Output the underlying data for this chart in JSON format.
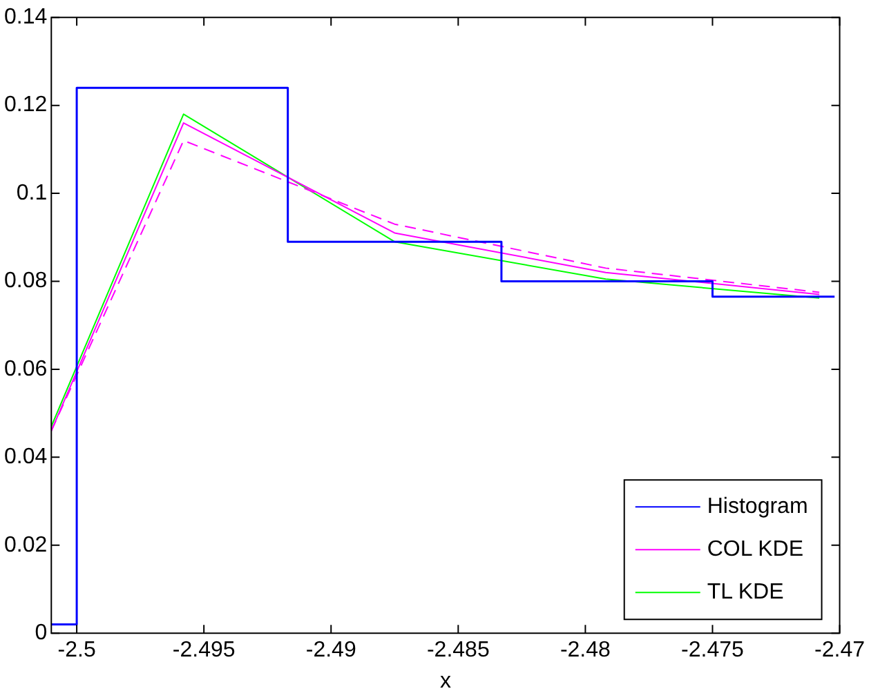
{
  "chart_data": {
    "type": "line",
    "xlabel": "x",
    "xlim": [
      -2.501,
      -2.47
    ],
    "xticks": [
      -2.5,
      -2.495,
      -2.49,
      -2.485,
      -2.48,
      -2.475,
      -2.47
    ],
    "ylim": [
      0,
      0.14
    ],
    "yticks": [
      0,
      0.02,
      0.04,
      0.06,
      0.08,
      0.1,
      0.12,
      0.14
    ],
    "grid": false,
    "legend": "bottom right",
    "marker": "none",
    "series": [
      {
        "name": "Histogram",
        "type": "step",
        "color": "#0000ff",
        "x": [
          -2.501,
          -2.5,
          -2.4917,
          -2.4833,
          -2.475,
          -2.4702
        ],
        "values": [
          0.002,
          0.124,
          0.089,
          0.08,
          0.0765,
          0.0765
        ]
      },
      {
        "name": "COL KDE",
        "color": "#ff00ff",
        "x": [
          -2.501,
          -2.4958,
          -2.4875,
          -2.4792,
          -2.4708
        ],
        "values": [
          0.046,
          0.116,
          0.091,
          0.082,
          0.077
        ],
        "line_style": "solid"
      },
      {
        "color": "#ff00ff",
        "x": [
          -2.501,
          -2.4958,
          -2.4875,
          -2.4792,
          -2.4708
        ],
        "values": [
          0.046,
          0.112,
          0.093,
          0.083,
          0.0775
        ],
        "line_style": "dashed"
      },
      {
        "name": "TL KDE",
        "color": "#00ff00",
        "x": [
          -2.501,
          -2.4958,
          -2.4875,
          -2.4792,
          -2.4708
        ],
        "values": [
          0.047,
          0.118,
          0.089,
          0.0805,
          0.0762
        ],
        "line_style": "solid"
      }
    ]
  }
}
